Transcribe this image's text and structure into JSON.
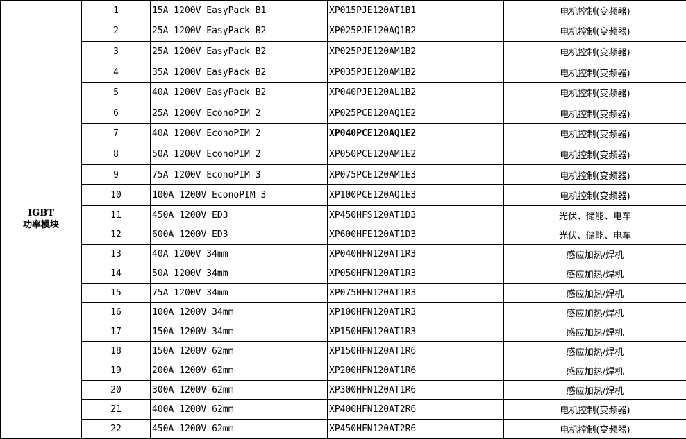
{
  "category": {
    "line1": "IGBT",
    "line2": "功率模块"
  },
  "rows": [
    {
      "no": "1",
      "spec": "15A 1200V EasyPack B1",
      "part": "XP015PJE120AT1B1",
      "application": "电机控制(变频器)"
    },
    {
      "no": "2",
      "spec": "25A 1200V EasyPack B2",
      "part": "XP025PJE120AQ1B2",
      "application": "电机控制(变频器)"
    },
    {
      "no": "3",
      "spec": "25A 1200V EasyPack B2",
      "part": "XP025PJE120AM1B2",
      "application": "电机控制(变频器)"
    },
    {
      "no": "4",
      "spec": "35A 1200V EasyPack B2",
      "part": "XP035PJE120AM1B2",
      "application": "电机控制(变频器)"
    },
    {
      "no": "5",
      "spec": "40A 1200V EasyPack B2",
      "part": "XP040PJE120AL1B2",
      "application": "电机控制(变频器)"
    },
    {
      "no": "6",
      "spec": "25A 1200V EconoPIM 2",
      "part": "XP025PCE120AQ1E2",
      "application": "电机控制(变频器)"
    },
    {
      "no": "7",
      "spec": "40A 1200V EconoPIM 2",
      "part": "XP040PCE120AQ1E2",
      "application": "电机控制(变频器)",
      "part_bold": true
    },
    {
      "no": "8",
      "spec": "50A 1200V EconoPIM 2",
      "part": "XP050PCE120AM1E2",
      "application": "电机控制(变频器)"
    },
    {
      "no": "9",
      "spec": "75A 1200V EconoPIM 3",
      "part": "XP075PCE120AM1E3",
      "application": "电机控制(变频器)"
    },
    {
      "no": "10",
      "spec": "100A 1200V EconoPIM 3",
      "part": "XP100PCE120AQ1E3",
      "application": "电机控制(变频器)"
    },
    {
      "no": "11",
      "spec": "450A 1200V ED3",
      "part": "XP450HFS120AT1D3",
      "application": "光伏、储能、电车"
    },
    {
      "no": "12",
      "spec": "600A 1200V ED3",
      "part": "XP600HFE120AT1D3",
      "application": "光伏、储能、电车"
    },
    {
      "no": "13",
      "spec": "40A 1200V 34mm",
      "part": "XP040HFN120AT1R3",
      "application": "感应加热/焊机"
    },
    {
      "no": "14",
      "spec": "50A 1200V 34mm",
      "part": "XP050HFN120AT1R3",
      "application": "感应加热/焊机"
    },
    {
      "no": "15",
      "spec": "75A 1200V 34mm",
      "part": "XP075HFN120AT1R3",
      "application": "感应加热/焊机"
    },
    {
      "no": "16",
      "spec": "100A 1200V 34mm",
      "part": "XP100HFN120AT1R3",
      "application": "感应加热/焊机"
    },
    {
      "no": "17",
      "spec": "150A 1200V 34mm",
      "part": "XP150HFN120AT1R3",
      "application": "感应加热/焊机"
    },
    {
      "no": "18",
      "spec": "150A 1200V 62mm",
      "part": "XP150HFN120AT1R6",
      "application": "感应加热/焊机"
    },
    {
      "no": "19",
      "spec": "200A 1200V 62mm",
      "part": "XP200HFN120AT1R6",
      "application": "感应加热/焊机"
    },
    {
      "no": "20",
      "spec": "300A 1200V 62mm",
      "part": "XP300HFN120AT1R6",
      "application": "感应加热/焊机"
    },
    {
      "no": "21",
      "spec": "400A 1200V 62mm",
      "part": "XP400HFN120AT2R6",
      "application": "电机控制(变频器)"
    },
    {
      "no": "22",
      "spec": "450A 1200V 62mm",
      "part": "XP450HFN120AT2R6",
      "application": "电机控制(变频器)"
    }
  ]
}
